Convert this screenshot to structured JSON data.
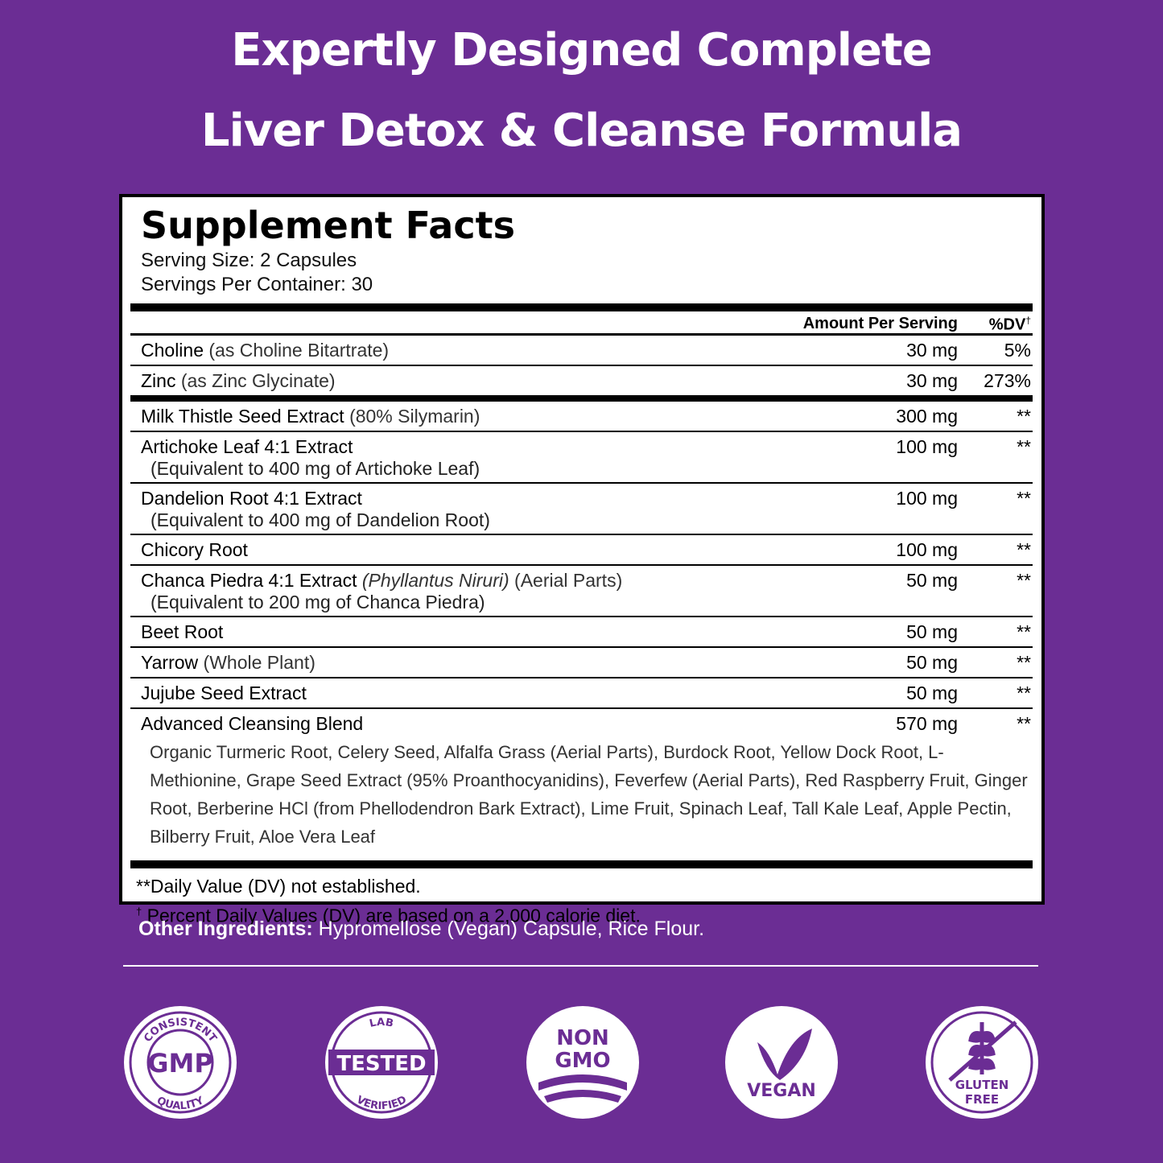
{
  "header": {
    "title_lines": [
      "Expertly Designed Complete",
      "Liver Detox & Cleanse Formula"
    ]
  },
  "facts": {
    "title": "Supplement Facts",
    "serving_size": "Serving Size: 2 Capsules",
    "servings_per_container": "Servings Per Container: 30",
    "amount_header": "Amount Per Serving",
    "dv_header": "%DV",
    "dv_mark": "†",
    "rows": [
      {
        "name": "Choline",
        "qualifier": "(as Choline Bitartrate)",
        "amount": "30 mg",
        "dv": "5%"
      },
      {
        "name": "Zinc",
        "qualifier": "(as Zinc Glycinate)",
        "amount": "30 mg",
        "dv": "273%"
      },
      {
        "name": "Milk Thistle Seed Extract",
        "qualifier": "(80% Silymarin)",
        "amount": "300 mg",
        "dv": "**"
      },
      {
        "name": "Artichoke Leaf 4:1 Extract",
        "equivalent": "(Equivalent to 400 mg of Artichoke Leaf)",
        "amount": "100 mg",
        "dv": "**"
      },
      {
        "name": "Dandelion Root 4:1 Extract",
        "equivalent": "(Equivalent to 400 mg of Dandelion Root)",
        "amount": "100 mg",
        "dv": "**"
      },
      {
        "name": "Chicory Root",
        "amount": "100 mg",
        "dv": "**"
      },
      {
        "name": "Chanca Piedra 4:1 Extract",
        "latin": "(Phyllantus Niruri)",
        "qualifier": "(Aerial Parts)",
        "equivalent": "(Equivalent to 200 mg of Chanca Piedra)",
        "amount": "50 mg",
        "dv": "**"
      },
      {
        "name": "Beet Root",
        "amount": "50 mg",
        "dv": "**"
      },
      {
        "name": "Yarrow",
        "qualifier": "(Whole Plant)",
        "amount": "50 mg",
        "dv": "**"
      },
      {
        "name": "Jujube Seed Extract",
        "amount": "50 mg",
        "dv": "**"
      },
      {
        "name": "Advanced Cleansing Blend",
        "amount": "570 mg",
        "dv": "**",
        "ingredients": "Organic Turmeric Root, Celery Seed, Alfalfa Grass (Aerial Parts), Burdock Root, Yellow Dock Root, L-Methionine, Grape Seed Extract (95% Proanthocyanidins), Feverfew (Aerial Parts), Red Raspberry Fruit, Ginger Root, Berberine HCl (from Phellodendron Bark Extract), Lime Fruit, Spinach Leaf, Tall Kale Leaf, Apple Pectin, Bilberry Fruit, Aloe Vera Leaf"
      }
    ],
    "footnotes": [
      {
        "text": "**Daily Value (DV) not established."
      },
      {
        "mark": "†",
        "text": "Percent Daily Values (DV) are based on a 2,000 calorie diet."
      }
    ]
  },
  "other_ingredients": {
    "label": "Other Ingredients:",
    "text": "Hypromellose (Vegan) Capsule, Rice Flour."
  },
  "badges": {
    "gmp": {
      "top": "CONSISTENT",
      "center": "GMP",
      "bottom": "QUALITY"
    },
    "lab": {
      "top": "LAB",
      "center": "TESTED",
      "bottom": "VERIFIED"
    },
    "non_gmo": {
      "line1": "NON",
      "line2": "GMO"
    },
    "vegan": {
      "label": "VEGAN"
    },
    "gluten": {
      "line1": "GLUTEN",
      "line2": "FREE"
    }
  }
}
